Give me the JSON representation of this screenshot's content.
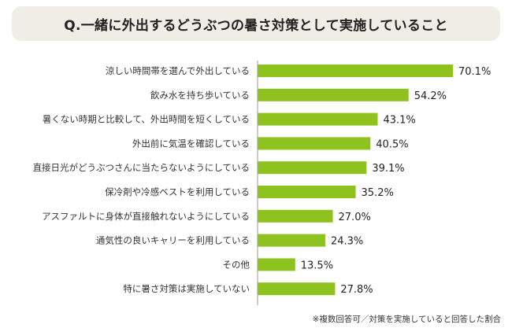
{
  "title": "Q.一緒に外出するどうぶつの暑さ対策として実施していること",
  "footnote": "※複数回答可／対策を実施していると回答した割合",
  "colors": {
    "bar": "#8dc21f",
    "title_bg": "#f0ede6",
    "axis": "#999999"
  },
  "chart_data": {
    "type": "bar",
    "orientation": "horizontal",
    "title": "Q.一緒に外出するどうぶつの暑さ対策として実施していること",
    "value_suffix": "%",
    "xlim": [
      0,
      70.1
    ],
    "grid": false,
    "categories": [
      "涼しい時間帯を選んで外出している",
      "飲み水を持ち歩いている",
      "暑くない時期と比較して、外出時間を短くしている",
      "外出前に気温を確認している",
      "直接日光がどうぶつさんに当たらないようにしている",
      "保冷剤や冷感ベストを利用している",
      "アスファルトに身体が直接触れないようにしている",
      "通気性の良いキャリーを利用している",
      "その他",
      "特に暑さ対策は実施していない"
    ],
    "values": [
      70.1,
      54.2,
      43.1,
      40.5,
      39.1,
      35.2,
      27.0,
      24.3,
      13.5,
      27.8
    ]
  }
}
